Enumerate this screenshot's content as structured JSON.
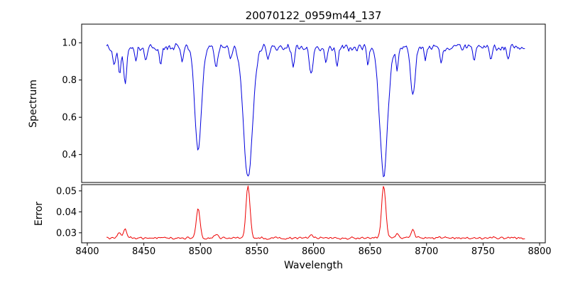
{
  "chart_data": {
    "type": "line",
    "title": "20070122_0959m44_137",
    "xlabel": "Wavelength",
    "xlim": [
      8395,
      8805
    ],
    "xticks": [
      8400,
      8450,
      8500,
      8550,
      8600,
      8650,
      8700,
      8750,
      8800
    ],
    "xtick_labels": [
      "8400",
      "8450",
      "8500",
      "8550",
      "8600",
      "8650",
      "8700",
      "8750",
      "8800"
    ],
    "x_start": 8417,
    "x_end": 8787,
    "samples": 400,
    "noise_seed": 20070122,
    "panels": [
      {
        "name": "spectrum",
        "ylabel": "Spectrum",
        "line_color": "#0000dd",
        "ylim": [
          0.25,
          1.1
        ],
        "ytick_values": [
          0.4,
          0.6,
          0.8,
          1.0
        ],
        "ytick_labels": [
          "0.4",
          "0.6",
          "0.8",
          "1.0"
        ],
        "continuum": 0.975,
        "noise_amplitude": 0.022,
        "absorption_lines": [
          {
            "center": 8424.0,
            "depth": 0.1,
            "sigma": 1.2
          },
          {
            "center": 8428.5,
            "depth": 0.14,
            "sigma": 1.2
          },
          {
            "center": 8433.5,
            "depth": 0.19,
            "sigma": 1.4
          },
          {
            "center": 8443.0,
            "depth": 0.07,
            "sigma": 1.0
          },
          {
            "center": 8452.0,
            "depth": 0.08,
            "sigma": 1.1
          },
          {
            "center": 8465.0,
            "depth": 0.09,
            "sigma": 1.1
          },
          {
            "center": 8484.0,
            "depth": 0.08,
            "sigma": 1.0
          },
          {
            "center": 8498.0,
            "depth": 0.55,
            "sigma": 3.0
          },
          {
            "center": 8514.0,
            "depth": 0.12,
            "sigma": 1.3
          },
          {
            "center": 8527.0,
            "depth": 0.07,
            "sigma": 1.0
          },
          {
            "center": 8542.1,
            "depth": 0.7,
            "sigma": 4.0
          },
          {
            "center": 8560.0,
            "depth": 0.06,
            "sigma": 1.0
          },
          {
            "center": 8582.0,
            "depth": 0.09,
            "sigma": 1.1
          },
          {
            "center": 8598.0,
            "depth": 0.15,
            "sigma": 1.4
          },
          {
            "center": 8611.0,
            "depth": 0.09,
            "sigma": 1.1
          },
          {
            "center": 8621.0,
            "depth": 0.1,
            "sigma": 1.1
          },
          {
            "center": 8648.0,
            "depth": 0.09,
            "sigma": 1.0
          },
          {
            "center": 8662.1,
            "depth": 0.69,
            "sigma": 3.5
          },
          {
            "center": 8674.0,
            "depth": 0.11,
            "sigma": 1.1
          },
          {
            "center": 8688.0,
            "depth": 0.27,
            "sigma": 1.9
          },
          {
            "center": 8699.0,
            "depth": 0.07,
            "sigma": 1.0
          },
          {
            "center": 8713.0,
            "depth": 0.09,
            "sigma": 1.1
          },
          {
            "center": 8742.0,
            "depth": 0.07,
            "sigma": 1.0
          },
          {
            "center": 8757.0,
            "depth": 0.08,
            "sigma": 1.0
          },
          {
            "center": 8772.0,
            "depth": 0.06,
            "sigma": 1.0
          }
        ]
      },
      {
        "name": "error",
        "ylabel": "Error",
        "line_color": "#ee0000",
        "ylim": [
          0.0252,
          0.053
        ],
        "ytick_values": [
          0.03,
          0.04,
          0.05
        ],
        "ytick_labels": [
          "0.03",
          "0.04",
          "0.05"
        ],
        "baseline": 0.0275,
        "noise_amplitude": 0.0007,
        "peaks": [
          {
            "center": 8428.5,
            "height": 0.0025,
            "sigma": 1.3
          },
          {
            "center": 8433.5,
            "height": 0.004,
            "sigma": 1.4
          },
          {
            "center": 8498.0,
            "height": 0.0145,
            "sigma": 1.6
          },
          {
            "center": 8514.0,
            "height": 0.0022,
            "sigma": 1.3
          },
          {
            "center": 8542.1,
            "height": 0.025,
            "sigma": 1.8
          },
          {
            "center": 8598.0,
            "height": 0.0018,
            "sigma": 1.3
          },
          {
            "center": 8662.1,
            "height": 0.025,
            "sigma": 1.8
          },
          {
            "center": 8674.0,
            "height": 0.0018,
            "sigma": 1.2
          },
          {
            "center": 8688.0,
            "height": 0.0042,
            "sigma": 1.5
          }
        ]
      }
    ]
  }
}
